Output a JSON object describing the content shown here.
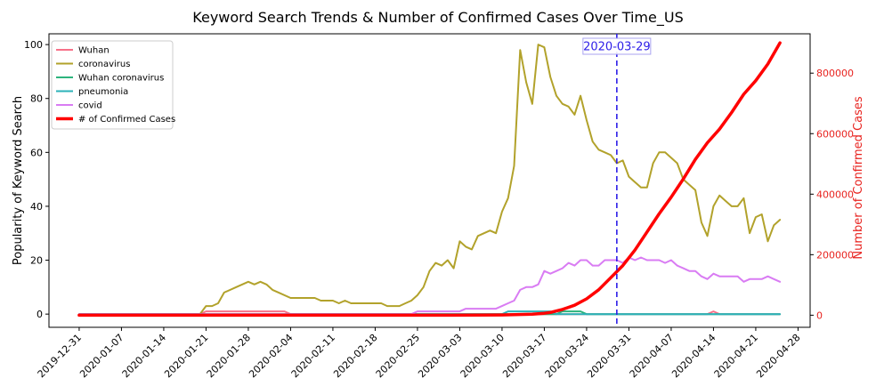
{
  "chart_data": {
    "type": "line",
    "title": "Keyword Search Trends & Number of Confirmed Cases Over Time_US",
    "ylabel": "Popularity of Keyword Search",
    "ylabel_right": "Number of Confirmed Cases",
    "ylim": [
      -4.9,
      104
    ],
    "ylim_right": [
      -40000,
      930000
    ],
    "xlim": [
      "2019-12-26",
      "2020-04-30"
    ],
    "x_ticks": [
      "2019-12-31",
      "2020-01-07",
      "2020-01-14",
      "2020-01-21",
      "2020-01-28",
      "2020-02-04",
      "2020-02-11",
      "2020-02-18",
      "2020-02-25",
      "2020-03-03",
      "2020-03-10",
      "2020-03-17",
      "2020-03-24",
      "2020-03-31",
      "2020-04-07",
      "2020-04-14",
      "2020-04-21",
      "2020-04-28"
    ],
    "y_ticks": [
      0,
      20,
      40,
      60,
      80,
      100
    ],
    "y_ticks_right": [
      0,
      200000,
      400000,
      600000,
      800000
    ],
    "y_tick_labels_right": [
      "0",
      "200000",
      "400000",
      "600000",
      "800000"
    ],
    "legend_position": "upper-left",
    "annotation": {
      "date": "2020-03-29",
      "label": "2020-03-29",
      "color": "#2d1ee8"
    },
    "colors": {
      "Wuhan": "#f77189",
      "coronavirus": "#b2a22b",
      "Wuhan coronavirus": "#2db47c",
      "pneumonia": "#2bb2b8",
      "covid": "#d97cf3",
      "# of Confirmed Cases": "#ff0000"
    },
    "series": [
      {
        "name": "Wuhan",
        "axis": "left",
        "points": [
          [
            "2019-12-31",
            0
          ],
          [
            "2020-01-20",
            0
          ],
          [
            "2020-01-21",
            1
          ],
          [
            "2020-02-03",
            1
          ],
          [
            "2020-02-04",
            0
          ],
          [
            "2020-04-13",
            0
          ],
          [
            "2020-04-14",
            1
          ],
          [
            "2020-04-15",
            0
          ],
          [
            "2020-04-25",
            0
          ]
        ]
      },
      {
        "name": "coronavirus",
        "axis": "left",
        "points": [
          [
            "2019-12-31",
            0
          ],
          [
            "2020-01-19",
            0
          ],
          [
            "2020-01-20",
            0
          ],
          [
            "2020-01-21",
            3
          ],
          [
            "2020-01-22",
            3
          ],
          [
            "2020-01-23",
            4
          ],
          [
            "2020-01-24",
            8
          ],
          [
            "2020-01-26",
            10
          ],
          [
            "2020-01-28",
            12
          ],
          [
            "2020-01-29",
            11
          ],
          [
            "2020-01-30",
            12
          ],
          [
            "2020-01-31",
            11
          ],
          [
            "2020-02-01",
            9
          ],
          [
            "2020-02-02",
            8
          ],
          [
            "2020-02-04",
            6
          ],
          [
            "2020-02-07",
            6
          ],
          [
            "2020-02-08",
            6
          ],
          [
            "2020-02-09",
            5
          ],
          [
            "2020-02-11",
            5
          ],
          [
            "2020-02-12",
            4
          ],
          [
            "2020-02-13",
            5
          ],
          [
            "2020-02-14",
            4
          ],
          [
            "2020-02-19",
            4
          ],
          [
            "2020-02-20",
            3
          ],
          [
            "2020-02-22",
            3
          ],
          [
            "2020-02-23",
            4
          ],
          [
            "2020-02-24",
            5
          ],
          [
            "2020-02-25",
            7
          ],
          [
            "2020-02-26",
            10
          ],
          [
            "2020-02-27",
            16
          ],
          [
            "2020-02-28",
            19
          ],
          [
            "2020-02-29",
            18
          ],
          [
            "2020-03-01",
            20
          ],
          [
            "2020-03-02",
            17
          ],
          [
            "2020-03-03",
            27
          ],
          [
            "2020-03-04",
            25
          ],
          [
            "2020-03-05",
            24
          ],
          [
            "2020-03-06",
            29
          ],
          [
            "2020-03-08",
            31
          ],
          [
            "2020-03-09",
            30
          ],
          [
            "2020-03-10",
            38
          ],
          [
            "2020-03-11",
            43
          ],
          [
            "2020-03-12",
            55
          ],
          [
            "2020-03-13",
            98
          ],
          [
            "2020-03-14",
            86
          ],
          [
            "2020-03-15",
            78
          ],
          [
            "2020-03-16",
            100
          ],
          [
            "2020-03-17",
            99
          ],
          [
            "2020-03-18",
            88
          ],
          [
            "2020-03-19",
            81
          ],
          [
            "2020-03-20",
            78
          ],
          [
            "2020-03-21",
            77
          ],
          [
            "2020-03-22",
            74
          ],
          [
            "2020-03-23",
            81
          ],
          [
            "2020-03-24",
            72
          ],
          [
            "2020-03-25",
            64
          ],
          [
            "2020-03-26",
            61
          ],
          [
            "2020-03-27",
            60
          ],
          [
            "2020-03-28",
            59
          ],
          [
            "2020-03-29",
            56
          ],
          [
            "2020-03-30",
            57
          ],
          [
            "2020-03-31",
            51
          ],
          [
            "2020-04-01",
            49
          ],
          [
            "2020-04-02",
            47
          ],
          [
            "2020-04-03",
            47
          ],
          [
            "2020-04-04",
            56
          ],
          [
            "2020-04-05",
            60
          ],
          [
            "2020-04-06",
            60
          ],
          [
            "2020-04-07",
            58
          ],
          [
            "2020-04-08",
            56
          ],
          [
            "2020-04-09",
            50
          ],
          [
            "2020-04-10",
            48
          ],
          [
            "2020-04-11",
            46
          ],
          [
            "2020-04-12",
            34
          ],
          [
            "2020-04-13",
            29
          ],
          [
            "2020-04-14",
            40
          ],
          [
            "2020-04-15",
            44
          ],
          [
            "2020-04-16",
            42
          ],
          [
            "2020-04-17",
            40
          ],
          [
            "2020-04-18",
            40
          ],
          [
            "2020-04-19",
            43
          ],
          [
            "2020-04-20",
            30
          ],
          [
            "2020-04-21",
            36
          ],
          [
            "2020-04-22",
            37
          ],
          [
            "2020-04-23",
            27
          ],
          [
            "2020-04-24",
            33
          ],
          [
            "2020-04-25",
            35
          ]
        ]
      },
      {
        "name": "Wuhan coronavirus",
        "axis": "left",
        "points": [
          [
            "2019-12-31",
            0
          ],
          [
            "2020-03-19",
            0
          ],
          [
            "2020-03-20",
            1
          ],
          [
            "2020-03-23",
            1
          ],
          [
            "2020-03-24",
            0
          ],
          [
            "2020-04-25",
            0
          ]
        ]
      },
      {
        "name": "pneumonia",
        "axis": "left",
        "points": [
          [
            "2019-12-31",
            0
          ],
          [
            "2020-03-10",
            0
          ],
          [
            "2020-03-11",
            1
          ],
          [
            "2020-03-18",
            1
          ],
          [
            "2020-03-19",
            0
          ],
          [
            "2020-04-25",
            0
          ]
        ]
      },
      {
        "name": "covid",
        "axis": "left",
        "points": [
          [
            "2019-12-31",
            0
          ],
          [
            "2020-02-24",
            0
          ],
          [
            "2020-02-25",
            1
          ],
          [
            "2020-03-02",
            1
          ],
          [
            "2020-03-03",
            1
          ],
          [
            "2020-03-04",
            2
          ],
          [
            "2020-03-09",
            2
          ],
          [
            "2020-03-10",
            3
          ],
          [
            "2020-03-11",
            4
          ],
          [
            "2020-03-12",
            5
          ],
          [
            "2020-03-13",
            9
          ],
          [
            "2020-03-14",
            10
          ],
          [
            "2020-03-15",
            10
          ],
          [
            "2020-03-16",
            11
          ],
          [
            "2020-03-17",
            16
          ],
          [
            "2020-03-18",
            15
          ],
          [
            "2020-03-19",
            16
          ],
          [
            "2020-03-20",
            17
          ],
          [
            "2020-03-21",
            19
          ],
          [
            "2020-03-22",
            18
          ],
          [
            "2020-03-23",
            20
          ],
          [
            "2020-03-24",
            20
          ],
          [
            "2020-03-25",
            18
          ],
          [
            "2020-03-26",
            18
          ],
          [
            "2020-03-27",
            20
          ],
          [
            "2020-03-28",
            20
          ],
          [
            "2020-03-29",
            20
          ],
          [
            "2020-03-30",
            19
          ],
          [
            "2020-03-31",
            21
          ],
          [
            "2020-04-01",
            20
          ],
          [
            "2020-04-02",
            21
          ],
          [
            "2020-04-03",
            20
          ],
          [
            "2020-04-04",
            20
          ],
          [
            "2020-04-05",
            20
          ],
          [
            "2020-04-06",
            19
          ],
          [
            "2020-04-07",
            20
          ],
          [
            "2020-04-08",
            18
          ],
          [
            "2020-04-09",
            17
          ],
          [
            "2020-04-10",
            16
          ],
          [
            "2020-04-11",
            16
          ],
          [
            "2020-04-12",
            14
          ],
          [
            "2020-04-13",
            13
          ],
          [
            "2020-04-14",
            15
          ],
          [
            "2020-04-15",
            14
          ],
          [
            "2020-04-16",
            14
          ],
          [
            "2020-04-18",
            14
          ],
          [
            "2020-04-19",
            12
          ],
          [
            "2020-04-20",
            13
          ],
          [
            "2020-04-21",
            13
          ],
          [
            "2020-04-22",
            13
          ],
          [
            "2020-04-23",
            14
          ],
          [
            "2020-04-24",
            13
          ],
          [
            "2020-04-25",
            12
          ]
        ]
      },
      {
        "name": "# of Confirmed Cases",
        "axis": "right",
        "points": [
          [
            "2019-12-31",
            0
          ],
          [
            "2020-03-01",
            0
          ],
          [
            "2020-03-10",
            1000
          ],
          [
            "2020-03-15",
            3500
          ],
          [
            "2020-03-17",
            6500
          ],
          [
            "2020-03-18",
            9000
          ],
          [
            "2020-03-20",
            19000
          ],
          [
            "2020-03-22",
            33000
          ],
          [
            "2020-03-24",
            54000
          ],
          [
            "2020-03-26",
            84000
          ],
          [
            "2020-03-28",
            124000
          ],
          [
            "2020-03-30",
            164000
          ],
          [
            "2020-04-01",
            215000
          ],
          [
            "2020-04-03",
            275000
          ],
          [
            "2020-04-05",
            335000
          ],
          [
            "2020-04-07",
            390000
          ],
          [
            "2020-04-09",
            450000
          ],
          [
            "2020-04-11",
            515000
          ],
          [
            "2020-04-13",
            570000
          ],
          [
            "2020-04-15",
            615000
          ],
          [
            "2020-04-17",
            670000
          ],
          [
            "2020-04-19",
            730000
          ],
          [
            "2020-04-21",
            775000
          ],
          [
            "2020-04-23",
            830000
          ],
          [
            "2020-04-25",
            900000
          ]
        ]
      }
    ]
  }
}
